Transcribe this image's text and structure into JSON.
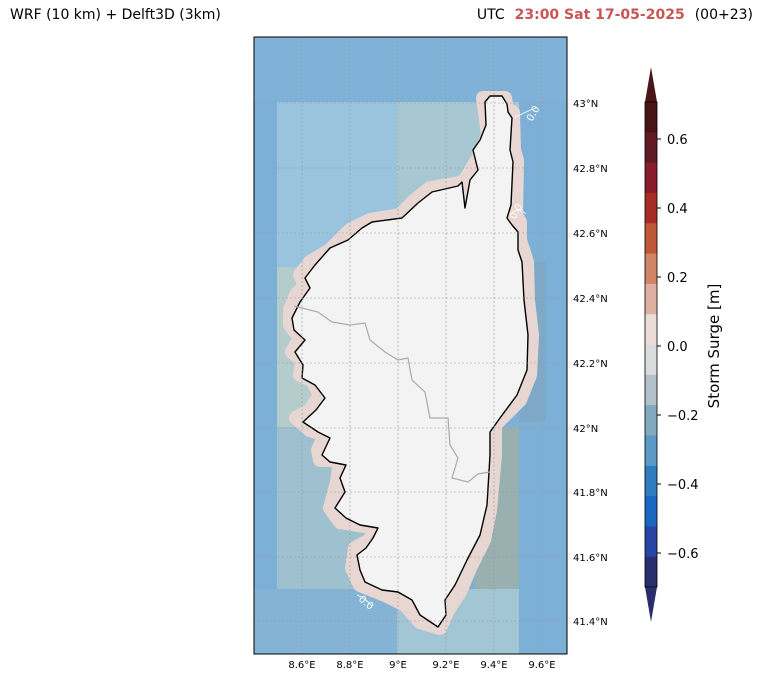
{
  "header": {
    "title_left": "WRF (10 km) + Delft3D (3km)",
    "utc_label": "UTC",
    "datetime": "23:00 Sat 17-05-2025",
    "forecast_step": "(00+23)"
  },
  "map": {
    "lon_ticks": [
      "8.6°E",
      "8.8°E",
      "9°E",
      "9.2°E",
      "9.4°E",
      "9.6°E"
    ],
    "lat_ticks": [
      "43°N",
      "42.8°N",
      "42.6°N",
      "42.4°N",
      "42.2°N",
      "42°N",
      "41.8°N",
      "41.6°N",
      "41.4°N"
    ],
    "contour_label": "0.0",
    "colors": {
      "sea": "#7db0d6",
      "land": "#f3f3f3",
      "coast_band": "#e8d6d2",
      "gridline": "#9a9a9a",
      "border": "#aaaaaa"
    }
  },
  "colorbar": {
    "label": "Storm Surge [m]",
    "ticks": [
      "0.6",
      "0.4",
      "0.2",
      "0.0",
      "−0.2",
      "−0.4",
      "−0.6"
    ],
    "colors": [
      "#4a1518",
      "#5e1a25",
      "#881c2d",
      "#a92b25",
      "#bf5638",
      "#cf8566",
      "#ddb0a2",
      "#ebdcd8",
      "#d9dbdd",
      "#b3c1cb",
      "#82aabf",
      "#5a9ac4",
      "#2f7dbf",
      "#1a66c1",
      "#2745a5",
      "#2a2d6b"
    ]
  }
}
